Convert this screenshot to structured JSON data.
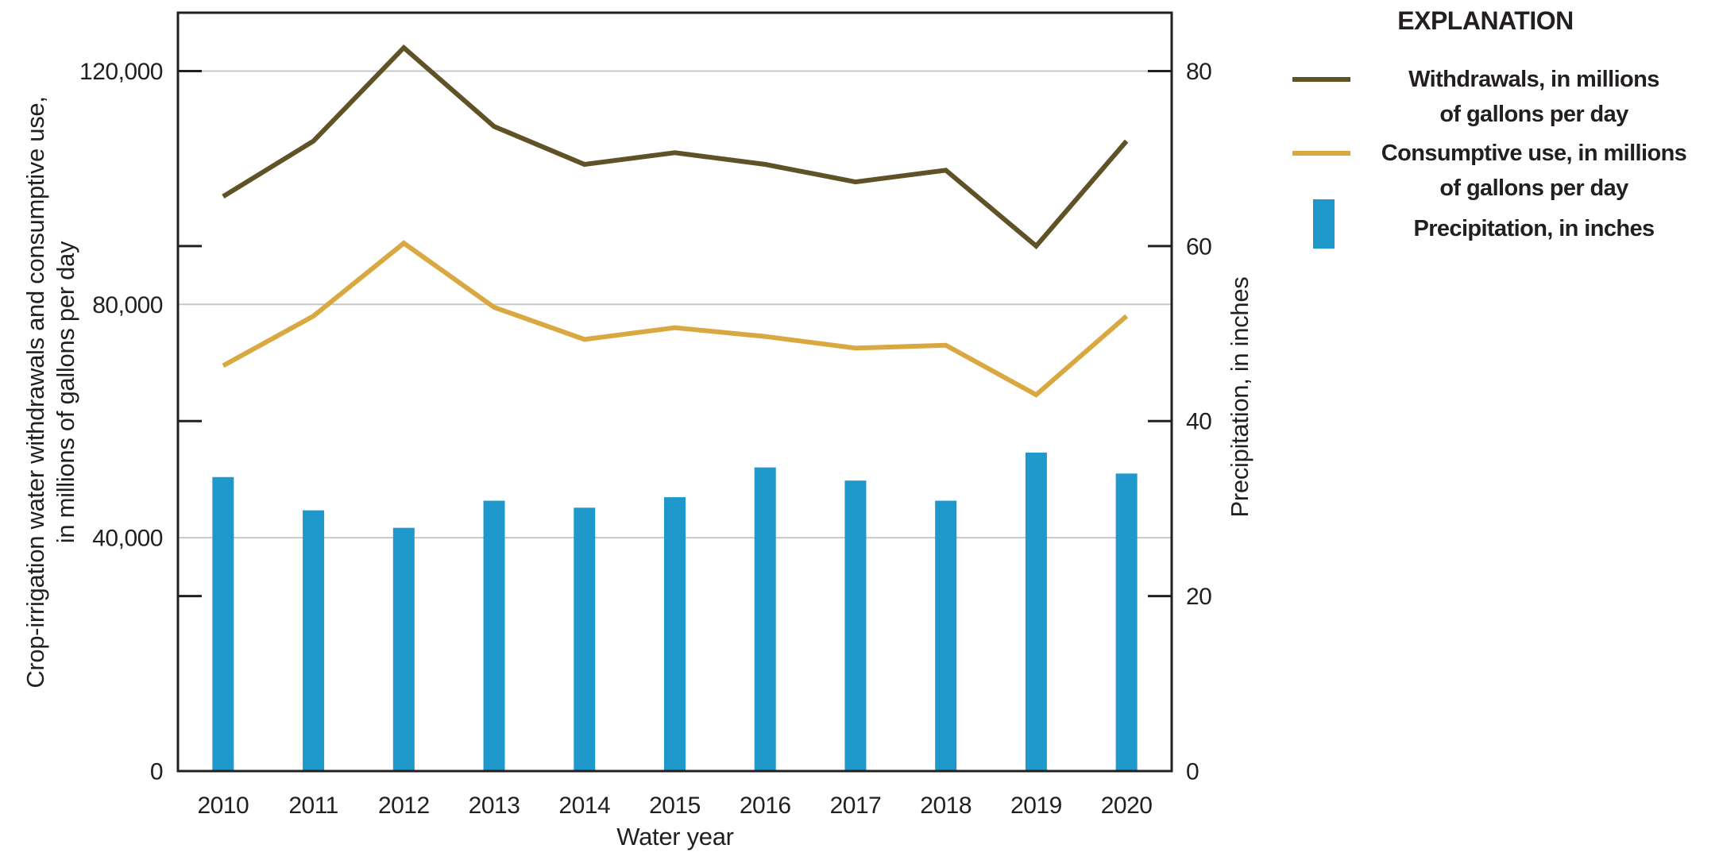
{
  "page": {
    "background": "#ffffff",
    "text_color": "#231f20"
  },
  "chart_data": {
    "type": "combo-line-bar",
    "categories": [
      "2010",
      "2011",
      "2012",
      "2013",
      "2014",
      "2015",
      "2016",
      "2017",
      "2018",
      "2019",
      "2020"
    ],
    "series": [
      {
        "name": "Withdrawals, in millions of gallons per day",
        "type": "line",
        "axis": "left",
        "color": "#5e5226",
        "values": [
          98500,
          108000,
          124000,
          110500,
          104000,
          106000,
          104000,
          101000,
          103000,
          90000,
          108000
        ]
      },
      {
        "name": "Consumptive use, in millions of gallons per day",
        "type": "line",
        "axis": "left",
        "color": "#d9a840",
        "values": [
          69500,
          78000,
          90500,
          79500,
          74000,
          76000,
          74500,
          72500,
          73000,
          64500,
          78000
        ]
      },
      {
        "name": "Precipitation, in inches",
        "type": "bar",
        "axis": "right",
        "color": "#1f98cb",
        "values": [
          33.6,
          29.8,
          27.8,
          30.9,
          30.1,
          31.3,
          34.7,
          33.2,
          30.9,
          36.4,
          34.0
        ]
      }
    ],
    "left_axis": {
      "label_line1": "Crop-irrigation water withdrawals and consumptive use,",
      "label_line2": "in millions of gallons per day",
      "range": [
        0,
        130000
      ],
      "tick_labels": [
        "0",
        "40,000",
        "80,000",
        "120,000"
      ],
      "tick_values": [
        0,
        40000,
        80000,
        120000
      ],
      "gridline_values": [
        40000,
        80000,
        120000
      ],
      "frame_tick_values": [
        30000,
        60000,
        90000,
        120000
      ]
    },
    "right_axis": {
      "label": "Precipitation, in inches",
      "range": [
        0,
        86.7
      ],
      "tick_labels": [
        "0",
        "20",
        "40",
        "60",
        "80"
      ],
      "tick_values": [
        0,
        20,
        40,
        60,
        80
      ],
      "frame_tick_values": [
        20,
        40,
        60,
        80
      ],
      "left_units_per_inch": 1500
    },
    "x_axis": {
      "label": "Water year"
    },
    "grid_color": "#c8c8c8",
    "frame_color": "#231f20",
    "legend": {
      "title": "EXPLANATION",
      "items": [
        {
          "line1": "Withdrawals, in millions",
          "line2": "of gallons per day",
          "swatch": "line"
        },
        {
          "line1": "Consumptive use, in millions",
          "line2": "of gallons per day",
          "swatch": "line"
        },
        {
          "line1": "Precipitation, in inches",
          "line2": "",
          "swatch": "bar"
        }
      ]
    }
  }
}
